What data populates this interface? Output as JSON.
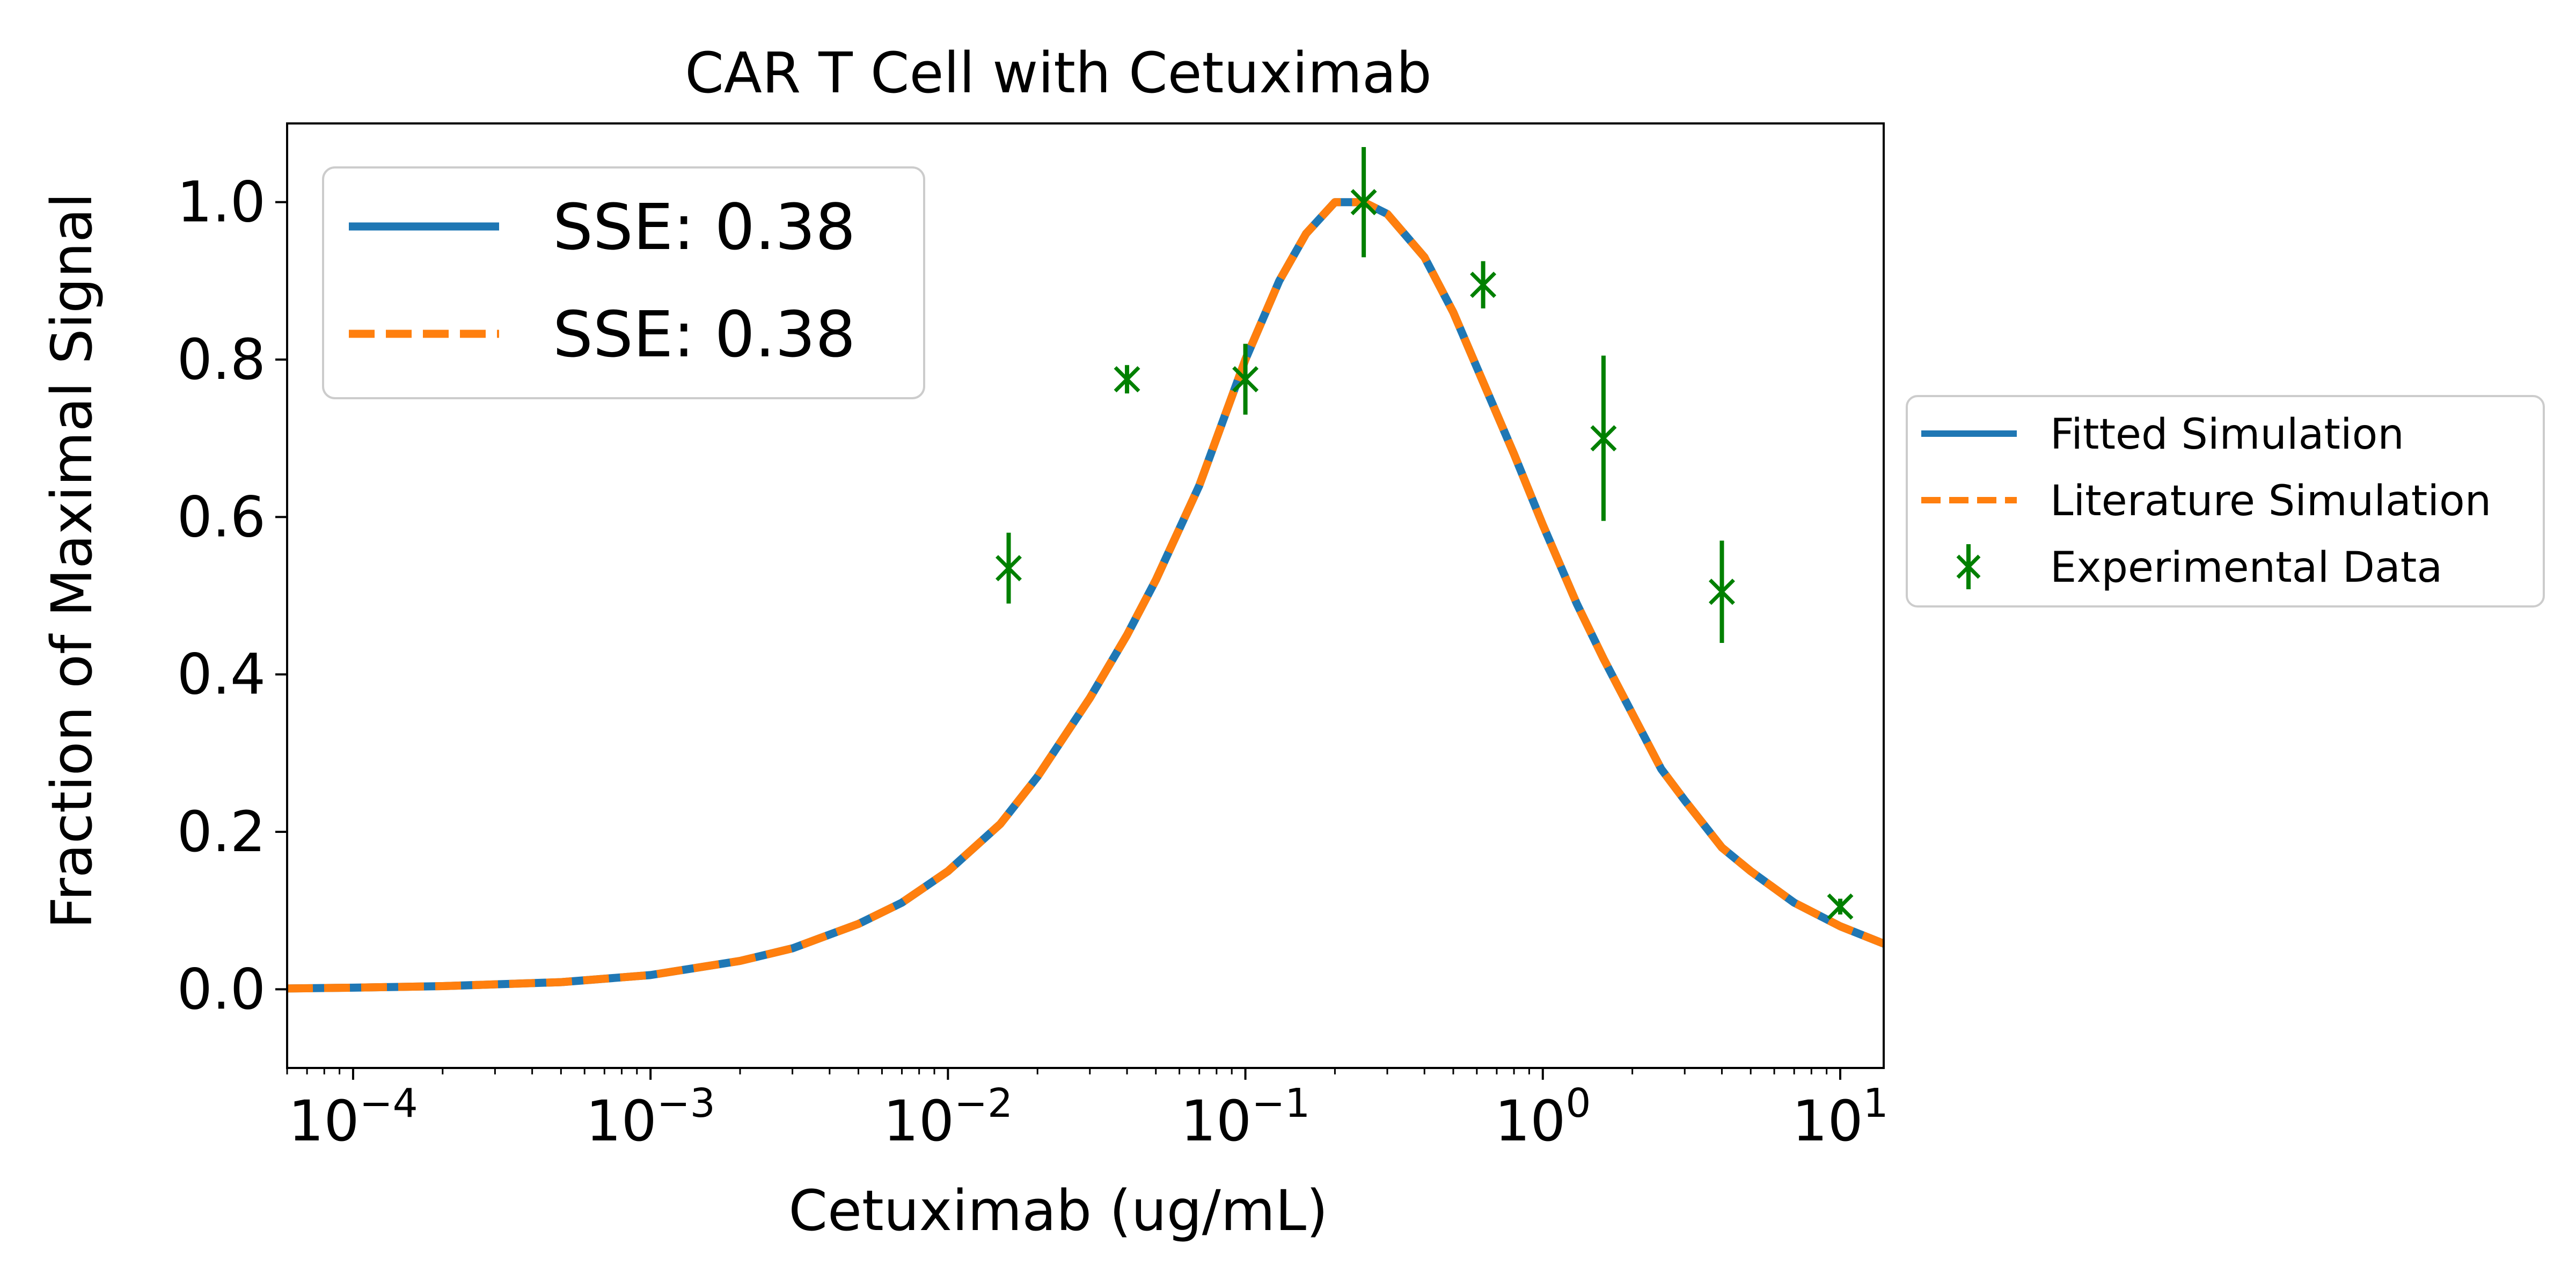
{
  "chart_data": {
    "type": "line",
    "title": "CAR T Cell with Cetuximab",
    "xlabel": "Cetuximab (ug/mL)",
    "ylabel": "Fraction of Maximal Signal",
    "xscale": "log",
    "xlim": [
      6e-05,
      14
    ],
    "ylim": [
      -0.1,
      1.1
    ],
    "x_ticks": [
      {
        "base": "10",
        "exp": "−4",
        "value": 0.0001
      },
      {
        "base": "10",
        "exp": "−3",
        "value": 0.001
      },
      {
        "base": "10",
        "exp": "−2",
        "value": 0.01
      },
      {
        "base": "10",
        "exp": "−1",
        "value": 0.1
      },
      {
        "base": "10",
        "exp": "0",
        "value": 1
      },
      {
        "base": "10",
        "exp": "1",
        "value": 10
      }
    ],
    "y_ticks": [
      {
        "label": "0.0",
        "value": 0.0
      },
      {
        "label": "0.2",
        "value": 0.2
      },
      {
        "label": "0.4",
        "value": 0.4
      },
      {
        "label": "0.6",
        "value": 0.6
      },
      {
        "label": "0.8",
        "value": 0.8
      },
      {
        "label": "1.0",
        "value": 1.0
      }
    ],
    "grid": false,
    "series": [
      {
        "name": "Fitted Simulation",
        "style": "solid",
        "color": "#1f77b4",
        "x": [
          6e-05,
          0.0001,
          0.0002,
          0.0005,
          0.001,
          0.002,
          0.003,
          0.005,
          0.007,
          0.01,
          0.015,
          0.02,
          0.03,
          0.04,
          0.05,
          0.07,
          0.1,
          0.13,
          0.16,
          0.2,
          0.25,
          0.3,
          0.4,
          0.5,
          0.6,
          0.8,
          1.0,
          1.3,
          1.6,
          2.0,
          2.5,
          3.0,
          4.0,
          5.0,
          7.0,
          10.0,
          14.0
        ],
        "y": [
          0.001,
          0.002,
          0.004,
          0.009,
          0.018,
          0.036,
          0.052,
          0.083,
          0.11,
          0.15,
          0.21,
          0.27,
          0.37,
          0.45,
          0.52,
          0.64,
          0.8,
          0.9,
          0.96,
          1.0,
          1.0,
          0.985,
          0.93,
          0.86,
          0.79,
          0.68,
          0.59,
          0.49,
          0.42,
          0.35,
          0.28,
          0.24,
          0.18,
          0.15,
          0.11,
          0.08,
          0.058
        ]
      },
      {
        "name": "Literature Simulation",
        "style": "dashed",
        "color": "#ff7f0e",
        "x": [
          6e-05,
          0.0001,
          0.0002,
          0.0005,
          0.001,
          0.002,
          0.003,
          0.005,
          0.007,
          0.01,
          0.015,
          0.02,
          0.03,
          0.04,
          0.05,
          0.07,
          0.1,
          0.13,
          0.16,
          0.2,
          0.25,
          0.3,
          0.4,
          0.5,
          0.6,
          0.8,
          1.0,
          1.3,
          1.6,
          2.0,
          2.5,
          3.0,
          4.0,
          5.0,
          7.0,
          10.0,
          14.0
        ],
        "y": [
          0.001,
          0.002,
          0.004,
          0.009,
          0.018,
          0.036,
          0.052,
          0.083,
          0.11,
          0.15,
          0.21,
          0.27,
          0.37,
          0.45,
          0.52,
          0.64,
          0.8,
          0.9,
          0.96,
          1.0,
          1.0,
          0.985,
          0.93,
          0.86,
          0.79,
          0.68,
          0.59,
          0.49,
          0.42,
          0.35,
          0.28,
          0.24,
          0.18,
          0.15,
          0.11,
          0.08,
          0.058
        ]
      },
      {
        "name": "Experimental Data",
        "style": "markers",
        "color": "#008000",
        "points": [
          {
            "x": 0.016,
            "y": 0.535,
            "err": 0.045
          },
          {
            "x": 0.04,
            "y": 0.775,
            "err": 0.018
          },
          {
            "x": 0.1,
            "y": 0.775,
            "err": 0.045
          },
          {
            "x": 0.25,
            "y": 1.0,
            "err": 0.07
          },
          {
            "x": 0.63,
            "y": 0.895,
            "err": 0.03
          },
          {
            "x": 1.6,
            "y": 0.7,
            "err": 0.105
          },
          {
            "x": 4.0,
            "y": 0.505,
            "err": 0.065
          },
          {
            "x": 10.0,
            "y": 0.105,
            "err": 0.01
          }
        ]
      }
    ],
    "inner_legend": {
      "placement": "upper-left",
      "entries": [
        {
          "label": "SSE: 0.38",
          "color": "#1f77b4",
          "style": "solid"
        },
        {
          "label": "SSE: 0.38",
          "color": "#ff7f0e",
          "style": "dashed"
        }
      ]
    },
    "outer_legend": {
      "placement": "outside-right"
    }
  }
}
